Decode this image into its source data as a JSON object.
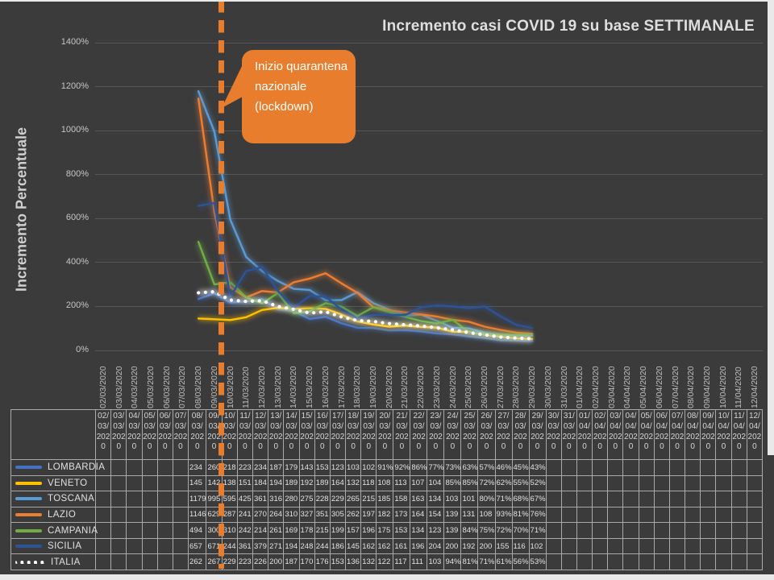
{
  "frame": {
    "bg": "#3B3B3B",
    "edge": "#E9E9E9",
    "gridline_color": "#57575B",
    "table_border": "#A9A9A9",
    "text_dim": "#BDBDBD",
    "text_bright": "#E3E3E3"
  },
  "header": {
    "title": "Incremento casi COVID 19 su base SETTIMANALE"
  },
  "y_axis": {
    "title": "Incremento Percentuale",
    "ticks": [
      "0%",
      "200%",
      "400%",
      "600%",
      "800%",
      "1000%",
      "1200%",
      "1400%"
    ]
  },
  "callout": {
    "text": "Inizio quarantena nazionale (lockdown)",
    "color": "#E87E2D"
  },
  "chart_data": {
    "type": "line",
    "title": "Incremento casi COVID 19 su base SETTIMANALE",
    "xlabel": "",
    "ylabel": "Incremento Percentuale",
    "ylim": [
      0,
      1400
    ],
    "ytick_step_percent": 200,
    "grid": true,
    "legend_position": "left-of-data-table",
    "categories": [
      "02/03/2020",
      "03/03/2020",
      "04/03/2020",
      "05/03/2020",
      "06/03/2020",
      "07/03/2020",
      "08/03/2020",
      "09/03/2020",
      "10/03/2020",
      "11/03/2020",
      "12/03/2020",
      "13/03/2020",
      "14/03/2020",
      "15/03/2020",
      "16/03/2020",
      "17/03/2020",
      "18/03/2020",
      "19/03/2020",
      "20/03/2020",
      "21/03/2020",
      "22/03/2020",
      "23/03/2020",
      "24/03/2020",
      "25/03/2020",
      "26/03/2020",
      "27/03/2020",
      "28/03/2020",
      "29/03/2020",
      "30/03/2020",
      "31/03/2020",
      "01/04/2020",
      "02/04/2020",
      "03/04/2020",
      "04/04/2020",
      "05/04/2020",
      "06/04/2020",
      "07/04/2020",
      "08/04/2020",
      "09/04/2020",
      "10/04/2020",
      "11/04/2020",
      "12/04/2020"
    ],
    "data_start_index": 6,
    "annotation": {
      "text": "Inizio quarantena nazionale (lockdown)",
      "at_category": "09/03/2020",
      "style": "dashed-vertical-line",
      "color": "#E87E2D"
    },
    "series": [
      {
        "name": "LOMBARDIA",
        "color": "#4472C4",
        "line_style": "solid",
        "values": [
          "234",
          "260",
          "218",
          "223",
          "234",
          "187",
          "179",
          "143",
          "153",
          "123",
          "103",
          "102",
          "91%",
          "92%",
          "86%",
          "77%",
          "73%",
          "63%",
          "57%",
          "46%",
          "45%",
          "43%"
        ]
      },
      {
        "name": "VENETO",
        "color": "#FFC000",
        "line_style": "solid",
        "values": [
          "145",
          "142",
          "138",
          "151",
          "184",
          "194",
          "189",
          "192",
          "189",
          "164",
          "132",
          "118",
          "108",
          "113",
          "107",
          "104",
          "85%",
          "85%",
          "72%",
          "62%",
          "55%",
          "52%"
        ]
      },
      {
        "name": "TOSCANA",
        "color": "#5B9BD5",
        "line_style": "solid",
        "values": [
          "1179",
          "995",
          "595",
          "425",
          "361",
          "316",
          "280",
          "275",
          "228",
          "229",
          "265",
          "215",
          "185",
          "158",
          "163",
          "134",
          "103",
          "101",
          "80%",
          "71%",
          "68%",
          "67%"
        ]
      },
      {
        "name": "LAZIO",
        "color": "#ED7D31",
        "line_style": "solid",
        "values": [
          "1146",
          "629",
          "287",
          "241",
          "270",
          "264",
          "310",
          "327",
          "351",
          "305",
          "262",
          "197",
          "182",
          "173",
          "164",
          "154",
          "139",
          "131",
          "108",
          "93%",
          "81%",
          "76%"
        ]
      },
      {
        "name": "CAMPANIA",
        "color": "#70AD47",
        "line_style": "solid",
        "values": [
          "494",
          "300",
          "310",
          "242",
          "214",
          "261",
          "169",
          "178",
          "215",
          "199",
          "157",
          "196",
          "175",
          "153",
          "134",
          "123",
          "139",
          "84%",
          "75%",
          "72%",
          "70%",
          "71%"
        ]
      },
      {
        "name": "SICILIA",
        "color": "#2E5395",
        "line_style": "solid",
        "values": [
          "657",
          "671",
          "244",
          "361",
          "379",
          "271",
          "194",
          "248",
          "244",
          "186",
          "145",
          "162",
          "162",
          "161",
          "196",
          "204",
          "200",
          "192",
          "200",
          "155",
          "116",
          "102"
        ]
      },
      {
        "name": "ITALIA",
        "color": "#FFFFFF",
        "line_style": "dotted",
        "values": [
          "262",
          "267",
          "229",
          "223",
          "226",
          "200",
          "187",
          "170",
          "176",
          "153",
          "136",
          "132",
          "122",
          "117",
          "111",
          "103",
          "94%",
          "81%",
          "71%",
          "61%",
          "56%",
          "53%"
        ]
      }
    ]
  }
}
